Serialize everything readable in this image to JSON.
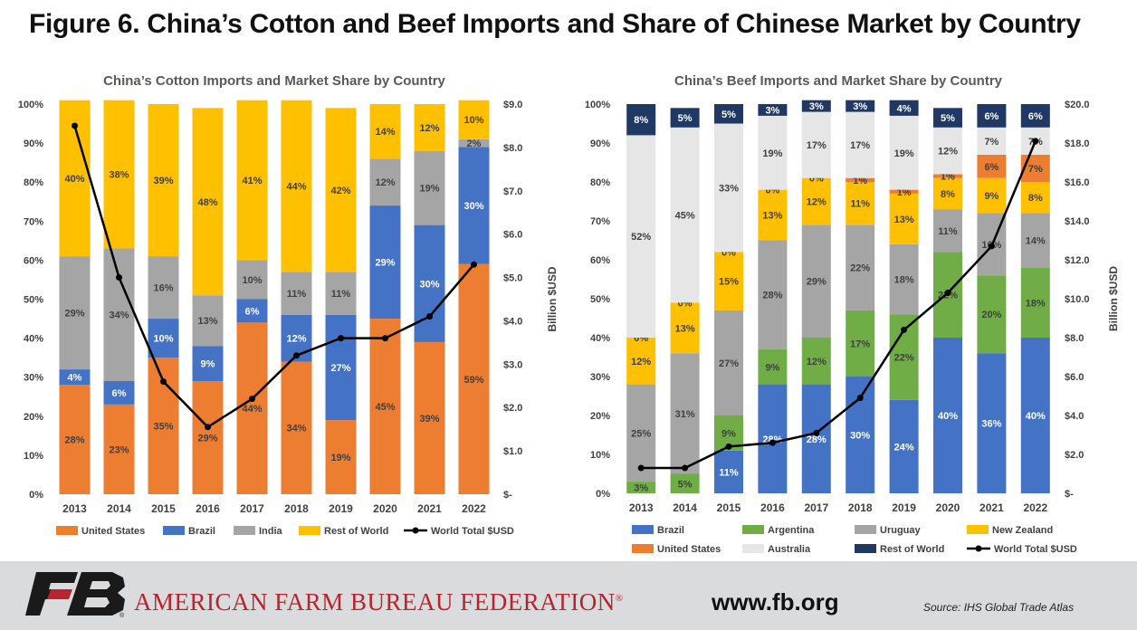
{
  "figure_title": "Figure 6. China’s Cotton and Beef Imports and Share of Chinese Market by Country",
  "footer": {
    "org_name": "AMERICAN FARM BUREAU FEDERATION",
    "registered_mark": "®",
    "website": "www.fb.org",
    "source": "Source: IHS Global Trade Atlas"
  },
  "chart_data": [
    {
      "type": "bar",
      "stacked": true,
      "title": "China’s Cotton Imports and Market Share by Country",
      "categories": [
        "2013",
        "2014",
        "2015",
        "2016",
        "2017",
        "2018",
        "2019",
        "2020",
        "2021",
        "2022"
      ],
      "ylim": [
        0,
        100
      ],
      "y_ticks": [
        "0%",
        "10%",
        "20%",
        "30%",
        "40%",
        "50%",
        "60%",
        "70%",
        "80%",
        "90%",
        "100%"
      ],
      "y2label": "Billion $USD",
      "y2lim": [
        0,
        9
      ],
      "y2_ticks": [
        "$-",
        "$1.0",
        "$2.0",
        "$3.0",
        "$4.0",
        "$5.0",
        "$6.0",
        "$7.0",
        "$8.0",
        "$9.0"
      ],
      "series": [
        {
          "name": "United States",
          "color": "#ed7d31",
          "values": [
            28,
            23,
            35,
            29,
            44,
            34,
            19,
            45,
            39,
            59
          ],
          "labels": [
            "28%",
            "23%",
            "35%",
            "29%",
            "44%",
            "34%",
            "19%",
            "45%",
            "39%",
            "59%"
          ]
        },
        {
          "name": "Brazil",
          "color": "#4472c4",
          "values": [
            4,
            6,
            10,
            9,
            6,
            12,
            27,
            29,
            30,
            30
          ],
          "labels": [
            "4%",
            "6%",
            "10%",
            "9%",
            "6%",
            "12%",
            "27%",
            "29%",
            "30%",
            "30%"
          ]
        },
        {
          "name": "India",
          "color": "#a5a5a5",
          "values": [
            29,
            34,
            16,
            13,
            10,
            11,
            11,
            12,
            19,
            2
          ],
          "labels": [
            "29%",
            "34%",
            "16%",
            "13%",
            "10%",
            "11%",
            "11%",
            "12%",
            "19%",
            "2%"
          ]
        },
        {
          "name": "Rest of World",
          "color": "#ffc000",
          "values": [
            40,
            38,
            39,
            48,
            41,
            44,
            42,
            14,
            12,
            10
          ],
          "labels": [
            "40%",
            "38%",
            "39%",
            "48%",
            "41%",
            "44%",
            "42%",
            "14%",
            "12%",
            "10%"
          ]
        }
      ],
      "line_series": {
        "name": "World Total $USD",
        "values": [
          8.5,
          5.0,
          2.6,
          1.55,
          2.2,
          3.2,
          3.6,
          3.6,
          4.1,
          5.3
        ]
      },
      "legend": "bottom"
    },
    {
      "type": "bar",
      "stacked": true,
      "title": "China’s Beef Imports and Market Share by Country",
      "categories": [
        "2013",
        "2014",
        "2015",
        "2016",
        "2017",
        "2018",
        "2019",
        "2020",
        "2021",
        "2022"
      ],
      "ylim": [
        0,
        100
      ],
      "y_ticks": [
        "0%",
        "10%",
        "20%",
        "30%",
        "40%",
        "50%",
        "60%",
        "70%",
        "80%",
        "90%",
        "100%"
      ],
      "y2label": "Billion $USD",
      "y2lim": [
        0,
        20
      ],
      "y2_ticks": [
        "$-",
        "$2.0",
        "$4.0",
        "$6.0",
        "$8.0",
        "$10.0",
        "$12.0",
        "$14.0",
        "$16.0",
        "$18.0",
        "$20.0"
      ],
      "series": [
        {
          "name": "Brazil",
          "color": "#4472c4",
          "values": [
            0,
            0,
            11,
            28,
            28,
            30,
            24,
            40,
            36,
            40
          ],
          "labels": [
            "0%",
            "0%",
            "11%",
            "28%",
            "28%",
            "30%",
            "24%",
            "40%",
            "36%",
            "40%"
          ]
        },
        {
          "name": "Argentina",
          "color": "#70ad47",
          "values": [
            3,
            5,
            9,
            9,
            12,
            17,
            22,
            22,
            20,
            18
          ],
          "labels": [
            "3%",
            "5%",
            "9%",
            "9%",
            "12%",
            "17%",
            "22%",
            "22%",
            "20%",
            "18%"
          ]
        },
        {
          "name": "Uruguay",
          "color": "#a5a5a5",
          "values": [
            25,
            31,
            27,
            28,
            29,
            22,
            18,
            11,
            16,
            14
          ],
          "labels": [
            "25%",
            "31%",
            "27%",
            "28%",
            "29%",
            "22%",
            "18%",
            "11%",
            "16%",
            "14%"
          ]
        },
        {
          "name": "New Zealand",
          "color": "#ffc000",
          "values": [
            12,
            13,
            15,
            13,
            12,
            11,
            13,
            8,
            9,
            8
          ],
          "labels": [
            "12%",
            "13%",
            "15%",
            "13%",
            "12%",
            "11%",
            "13%",
            "8%",
            "9%",
            "8%"
          ]
        },
        {
          "name": "United States",
          "color": "#ed7d31",
          "values": [
            0,
            0,
            0,
            0,
            0,
            1,
            1,
            1,
            6,
            7
          ],
          "labels": [
            "0%",
            "0%",
            "0%",
            "0%",
            "0%",
            "1%",
            "1%",
            "1%",
            "6%",
            "7%"
          ]
        },
        {
          "name": "Australia",
          "color": "#e7e6e6",
          "values": [
            52,
            45,
            33,
            19,
            17,
            17,
            19,
            12,
            7,
            7
          ],
          "labels": [
            "52%",
            "45%",
            "33%",
            "19%",
            "17%",
            "17%",
            "19%",
            "12%",
            "7%",
            "7%"
          ]
        },
        {
          "name": "Rest of World",
          "color": "#203864",
          "values": [
            8,
            5,
            5,
            3,
            3,
            3,
            4,
            5,
            6,
            6
          ],
          "labels": [
            "8%",
            "5%",
            "5%",
            "3%",
            "3%",
            "3%",
            "4%",
            "5%",
            "6%",
            "6%"
          ]
        }
      ],
      "line_series": {
        "name": "World Total $USD",
        "values": [
          1.3,
          1.3,
          2.4,
          2.6,
          3.1,
          4.9,
          8.4,
          10.3,
          12.7,
          18.1
        ]
      },
      "legend": "bottom"
    }
  ]
}
